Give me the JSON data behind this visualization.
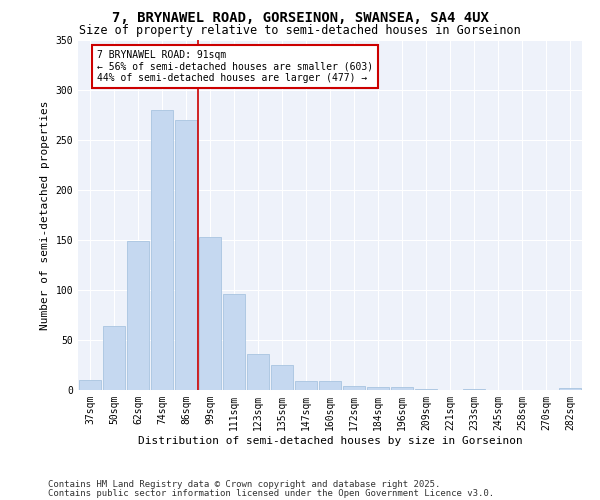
{
  "title1": "7, BRYNAWEL ROAD, GORSEINON, SWANSEA, SA4 4UX",
  "title2": "Size of property relative to semi-detached houses in Gorseinon",
  "xlabel": "Distribution of semi-detached houses by size in Gorseinon",
  "ylabel": "Number of semi-detached properties",
  "categories": [
    "37sqm",
    "50sqm",
    "62sqm",
    "74sqm",
    "86sqm",
    "99sqm",
    "111sqm",
    "123sqm",
    "135sqm",
    "147sqm",
    "160sqm",
    "172sqm",
    "184sqm",
    "196sqm",
    "209sqm",
    "221sqm",
    "233sqm",
    "245sqm",
    "258sqm",
    "270sqm",
    "282sqm"
  ],
  "values": [
    10,
    64,
    149,
    280,
    270,
    153,
    96,
    36,
    25,
    9,
    9,
    4,
    3,
    3,
    1,
    0,
    1,
    0,
    0,
    0,
    2
  ],
  "bar_color": "#c5d8f0",
  "bar_edgecolor": "#a8c4e0",
  "ref_line_x": 4.5,
  "ref_line_label": "7 BRYNAWEL ROAD: 91sqm",
  "ref_line_pct_smaller": "← 56% of semi-detached houses are smaller (603)",
  "ref_line_pct_larger": "44% of semi-detached houses are larger (477) →",
  "ref_line_color": "#cc0000",
  "annotation_box_edgecolor": "#cc0000",
  "ylim": [
    0,
    350
  ],
  "yticks": [
    0,
    50,
    100,
    150,
    200,
    250,
    300,
    350
  ],
  "bg_color": "#eef2fa",
  "footer1": "Contains HM Land Registry data © Crown copyright and database right 2025.",
  "footer2": "Contains public sector information licensed under the Open Government Licence v3.0.",
  "title_fontsize": 10,
  "subtitle_fontsize": 8.5,
  "axis_label_fontsize": 8,
  "tick_fontsize": 7,
  "annot_fontsize": 7,
  "footer_fontsize": 6.5
}
